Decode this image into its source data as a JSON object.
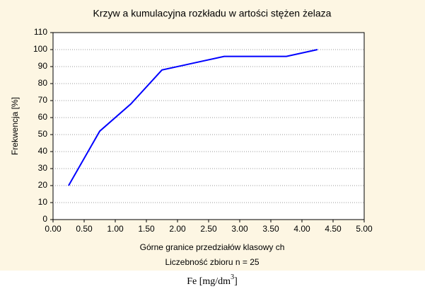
{
  "chart_data": {
    "type": "line",
    "title": "Krzyw a kumulacyjna rozkładu w artości stężen żelaza",
    "xlabel": "Górne granice przedziałów klasowy ch",
    "note": "Liczebność zbioru  n = 25",
    "ylabel": "Frekwencja [%]",
    "unit": {
      "text": "Fe  [mg/dm",
      "sup": "3",
      "close": "]"
    },
    "x": [
      0.25,
      0.75,
      1.25,
      1.75,
      2.25,
      2.75,
      3.25,
      3.75,
      4.25
    ],
    "series": [
      {
        "name": "Frekwencja",
        "color": "#0000ff",
        "values": [
          20,
          52,
          68,
          88,
          92,
          96,
          96,
          96,
          100
        ]
      }
    ],
    "xlim": [
      0,
      5
    ],
    "xticks": [
      {
        "value": 0,
        "label": "0.00"
      },
      {
        "value": 0.5,
        "label": "0.50"
      },
      {
        "value": 1,
        "label": "1.00"
      },
      {
        "value": 1.5,
        "label": "1.50"
      },
      {
        "value": 2,
        "label": "2.00"
      },
      {
        "value": 2.5,
        "label": "2.50"
      },
      {
        "value": 3,
        "label": "3.00"
      },
      {
        "value": 3.5,
        "label": "3.50"
      },
      {
        "value": 4,
        "label": "4.00"
      },
      {
        "value": 4.5,
        "label": "4.50"
      },
      {
        "value": 5,
        "label": "5.00"
      }
    ],
    "ylim": [
      0,
      110
    ],
    "yticks": [
      0,
      10,
      20,
      30,
      40,
      50,
      60,
      70,
      80,
      90,
      100,
      110
    ],
    "grid": true
  }
}
